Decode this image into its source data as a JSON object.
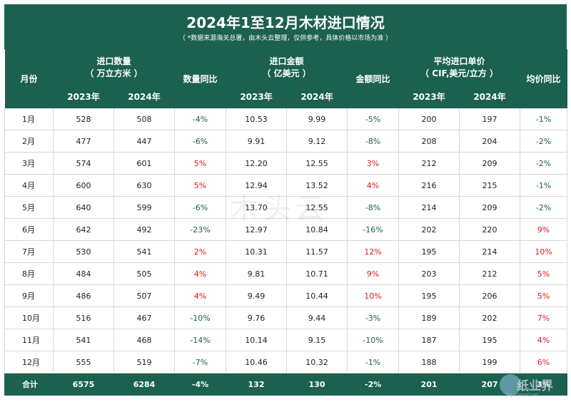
{
  "title": "2024年1至12月木材进口情况",
  "subtitle": "（ *数据来源海关总署，由木头云整理，仅供参考，具体价格以市场为准 ）",
  "headers": {
    "month": "月份",
    "qty_group_1": "进口数量",
    "qty_group_2": "（ 万立方米 ）",
    "qty_yoy": "数量同比",
    "amt_group_1": "进口金额",
    "amt_group_2": "（ 亿美元 ）",
    "amt_yoy": "金额同比",
    "price_group_1": "平均进口单价",
    "price_group_2": "（ CIF,美元/立方 ）",
    "price_yoy": "均价同比",
    "y2023": "2023年",
    "y2024": "2024年"
  },
  "rows": [
    {
      "month": "1月",
      "q23": "528",
      "q24": "508",
      "qy": "-4%",
      "a23": "10.53",
      "a24": "9.99",
      "ay": "-5%",
      "p23": "200",
      "p24": "197",
      "py": "-1%"
    },
    {
      "month": "2月",
      "q23": "477",
      "q24": "447",
      "qy": "-6%",
      "a23": "9.91",
      "a24": "9.12",
      "ay": "-8%",
      "p23": "208",
      "p24": "204",
      "py": "-2%"
    },
    {
      "month": "3月",
      "q23": "574",
      "q24": "601",
      "qy": "5%",
      "a23": "12.20",
      "a24": "12.55",
      "ay": "3%",
      "p23": "212",
      "p24": "209",
      "py": "-2%"
    },
    {
      "month": "4月",
      "q23": "600",
      "q24": "630",
      "qy": "5%",
      "a23": "12.94",
      "a24": "13.52",
      "ay": "4%",
      "p23": "216",
      "p24": "215",
      "py": "-1%"
    },
    {
      "month": "5月",
      "q23": "640",
      "q24": "599",
      "qy": "-6%",
      "a23": "13.70",
      "a24": "12.55",
      "ay": "-8%",
      "p23": "214",
      "p24": "209",
      "py": "-2%"
    },
    {
      "month": "6月",
      "q23": "642",
      "q24": "492",
      "qy": "-23%",
      "a23": "12.97",
      "a24": "10.84",
      "ay": "-16%",
      "p23": "202",
      "p24": "220",
      "py": "9%"
    },
    {
      "month": "7月",
      "q23": "530",
      "q24": "541",
      "qy": "2%",
      "a23": "10.31",
      "a24": "11.57",
      "ay": "12%",
      "p23": "195",
      "p24": "214",
      "py": "10%"
    },
    {
      "month": "8月",
      "q23": "484",
      "q24": "505",
      "qy": "4%",
      "a23": "9.81",
      "a24": "10.71",
      "ay": "9%",
      "p23": "203",
      "p24": "212",
      "py": "5%"
    },
    {
      "month": "9月",
      "q23": "486",
      "q24": "507",
      "qy": "4%",
      "a23": "9.49",
      "a24": "10.44",
      "ay": "10%",
      "p23": "195",
      "p24": "206",
      "py": "5%"
    },
    {
      "month": "10月",
      "q23": "516",
      "q24": "467",
      "qy": "-10%",
      "a23": "9.76",
      "a24": "9.44",
      "ay": "-3%",
      "p23": "189",
      "p24": "202",
      "py": "7%"
    },
    {
      "month": "11月",
      "q23": "541",
      "q24": "468",
      "qy": "-14%",
      "a23": "10.14",
      "a24": "9.15",
      "ay": "-10%",
      "p23": "187",
      "p24": "195",
      "py": "4%"
    },
    {
      "month": "12月",
      "q23": "555",
      "q24": "519",
      "qy": "-7%",
      "a23": "10.46",
      "a24": "10.32",
      "ay": "-1%",
      "p23": "188",
      "p24": "199",
      "py": "6%"
    }
  ],
  "total": {
    "month": "合计",
    "q23": "6575",
    "q24": "6284",
    "qy": "-4%",
    "a23": "132",
    "a24": "130",
    "ay": "-2%",
    "p23": "201",
    "p24": "207",
    "py": "3%"
  },
  "watermark": "木头云",
  "logo": {
    "text": "纸业界",
    "url": "paperworld.net"
  },
  "colors": {
    "header_bg": "#1c6150",
    "negative": "#1c6150",
    "positive": "#e11b1b"
  }
}
